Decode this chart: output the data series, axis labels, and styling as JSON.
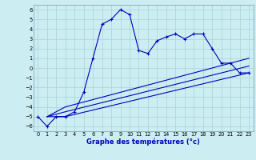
{
  "xlabel": "Graphe des températures (°c)",
  "bg_color": "#cceef2",
  "grid_color": "#aad8de",
  "line_color": "#0000bb",
  "xlim": [
    -0.5,
    23.5
  ],
  "ylim": [
    -6.5,
    6.5
  ],
  "xticks": [
    0,
    1,
    2,
    3,
    4,
    5,
    6,
    7,
    8,
    9,
    10,
    11,
    12,
    13,
    14,
    15,
    16,
    17,
    18,
    19,
    20,
    21,
    22,
    23
  ],
  "yticks": [
    -6,
    -5,
    -4,
    -3,
    -2,
    -1,
    0,
    1,
    2,
    3,
    4,
    5,
    6
  ],
  "series1_x": [
    0,
    1,
    2,
    3,
    4,
    5,
    6,
    7,
    8,
    9,
    10,
    11,
    12,
    13,
    14,
    15,
    16,
    17,
    18,
    19,
    20,
    21,
    22,
    23
  ],
  "series1_y": [
    -5.0,
    -6.0,
    -5.0,
    -5.0,
    -4.5,
    -2.5,
    1.0,
    4.5,
    5.0,
    6.0,
    5.5,
    1.8,
    1.5,
    2.8,
    3.2,
    3.5,
    3.0,
    3.5,
    3.5,
    2.0,
    0.5,
    0.5,
    -0.5,
    -0.5
  ],
  "series2_x": [
    1,
    3,
    23
  ],
  "series2_y": [
    -5.0,
    -5.0,
    -0.5
  ],
  "series3_x": [
    1,
    3,
    23
  ],
  "series3_y": [
    -5.0,
    -4.5,
    0.2
  ],
  "series4_x": [
    1,
    3,
    23
  ],
  "series4_y": [
    -5.0,
    -4.0,
    1.0
  ],
  "tick_fontsize": 4.8,
  "xlabel_fontsize": 6.0
}
